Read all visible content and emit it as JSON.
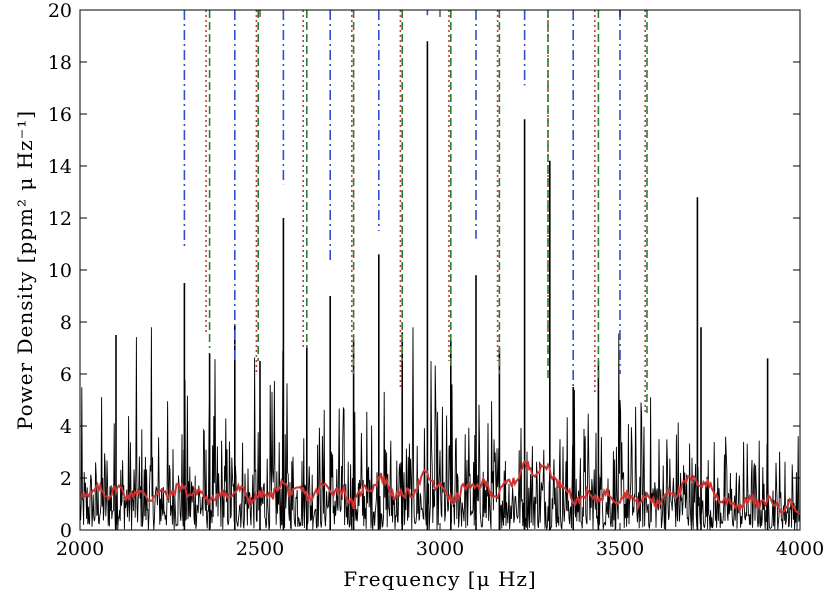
{
  "chart_data": {
    "type": "line",
    "xlabel": "Frequency [μ Hz]",
    "ylabel": "Power Density [ppm² μ Hz⁻¹]",
    "xlim": [
      2000,
      4000
    ],
    "ylim": [
      0,
      20
    ],
    "x_ticks": [
      "2000",
      "2500",
      "3000",
      "3500",
      "4000"
    ],
    "y_ticks": [
      "0",
      "2",
      "4",
      "6",
      "8",
      "10",
      "12",
      "14",
      "16",
      "18",
      "20"
    ],
    "grid": false,
    "colors": {
      "spectrum": "#000000",
      "smoothed": "#cc3333",
      "mode_l0": "#2f4fd0",
      "mode_l1": "#c04040",
      "mode_l2": "#2e7d32"
    },
    "series": [
      {
        "style": "solid-black",
        "description_values": "power spectrum peaks",
        "x": [
          2100,
          2290,
          2360,
          2430,
          2500,
          2565,
          2630,
          2695,
          2760,
          2830,
          2895,
          2965,
          3030,
          3100,
          3165,
          3235,
          3305,
          3370,
          3440,
          3715,
          3725,
          3910
        ],
        "y": [
          7.5,
          9.5,
          6.8,
          7.9,
          6.5,
          12.0,
          7.1,
          9.0,
          7.3,
          10.6,
          7.6,
          18.8,
          7.3,
          9.8,
          7.0,
          15.8,
          14.2,
          5.5,
          6.5,
          12.8,
          7.8,
          6.6
        ]
      },
      {
        "style": "solid-red",
        "description_values": "smoothed spectrum",
        "x": [
          2000,
          2100,
          2200,
          2290,
          2360,
          2430,
          2500,
          2565,
          2630,
          2695,
          2760,
          2830,
          2895,
          2965,
          3030,
          3100,
          3165,
          3235,
          3305,
          3370,
          3440,
          3500,
          3600,
          3715,
          3800,
          3900,
          4000
        ],
        "y": [
          1.4,
          1.5,
          1.3,
          1.6,
          1.2,
          1.5,
          1.2,
          1.7,
          1.3,
          1.7,
          1.1,
          2.0,
          1.2,
          2.1,
          1.2,
          1.8,
          1.4,
          2.4,
          2.3,
          1.2,
          1.3,
          1.3,
          1.1,
          2.0,
          1.0,
          1.1,
          0.8
        ]
      }
    ],
    "mode_lines": {
      "l0_blue_dashdot": [
        {
          "x": 2290,
          "y_bottom": 10.8
        },
        {
          "x": 2430,
          "y_bottom": 6.4
        },
        {
          "x": 2565,
          "y_bottom": 13.3
        },
        {
          "x": 2695,
          "y_bottom": 10.3
        },
        {
          "x": 2830,
          "y_bottom": 11.5
        },
        {
          "x": 2965,
          "y_bottom": 19.8
        },
        {
          "x": 3100,
          "y_bottom": 11.2
        },
        {
          "x": 3235,
          "y_bottom": 17.1
        },
        {
          "x": 3370,
          "y_bottom": 5.5
        },
        {
          "x": 3500,
          "y_bottom": 6.0
        }
      ],
      "l1_red_dotted": [
        {
          "x": 2350,
          "y_bottom": 7.5
        },
        {
          "x": 2490,
          "y_bottom": 6.0
        },
        {
          "x": 2620,
          "y_bottom": 7.0
        },
        {
          "x": 2755,
          "y_bottom": 6.0
        },
        {
          "x": 2890,
          "y_bottom": 5.5
        },
        {
          "x": 3025,
          "y_bottom": 6.5
        },
        {
          "x": 3160,
          "y_bottom": 6.5
        },
        {
          "x": 3300,
          "y_bottom": 6.8
        },
        {
          "x": 3430,
          "y_bottom": 5.2
        },
        {
          "x": 3570,
          "y_bottom": 4.5
        }
      ],
      "l2_green_dashed": [
        {
          "x": 2360,
          "y_bottom": 7.0
        },
        {
          "x": 2495,
          "y_bottom": 6.5
        },
        {
          "x": 2630,
          "y_bottom": 7.0
        },
        {
          "x": 2760,
          "y_bottom": 6.0
        },
        {
          "x": 2895,
          "y_bottom": 6.5
        },
        {
          "x": 3030,
          "y_bottom": 6.2
        },
        {
          "x": 3165,
          "y_bottom": 6.0
        },
        {
          "x": 3300,
          "y_bottom": 5.8
        },
        {
          "x": 3440,
          "y_bottom": 5.8
        },
        {
          "x": 3575,
          "y_bottom": 4.5
        }
      ]
    }
  }
}
